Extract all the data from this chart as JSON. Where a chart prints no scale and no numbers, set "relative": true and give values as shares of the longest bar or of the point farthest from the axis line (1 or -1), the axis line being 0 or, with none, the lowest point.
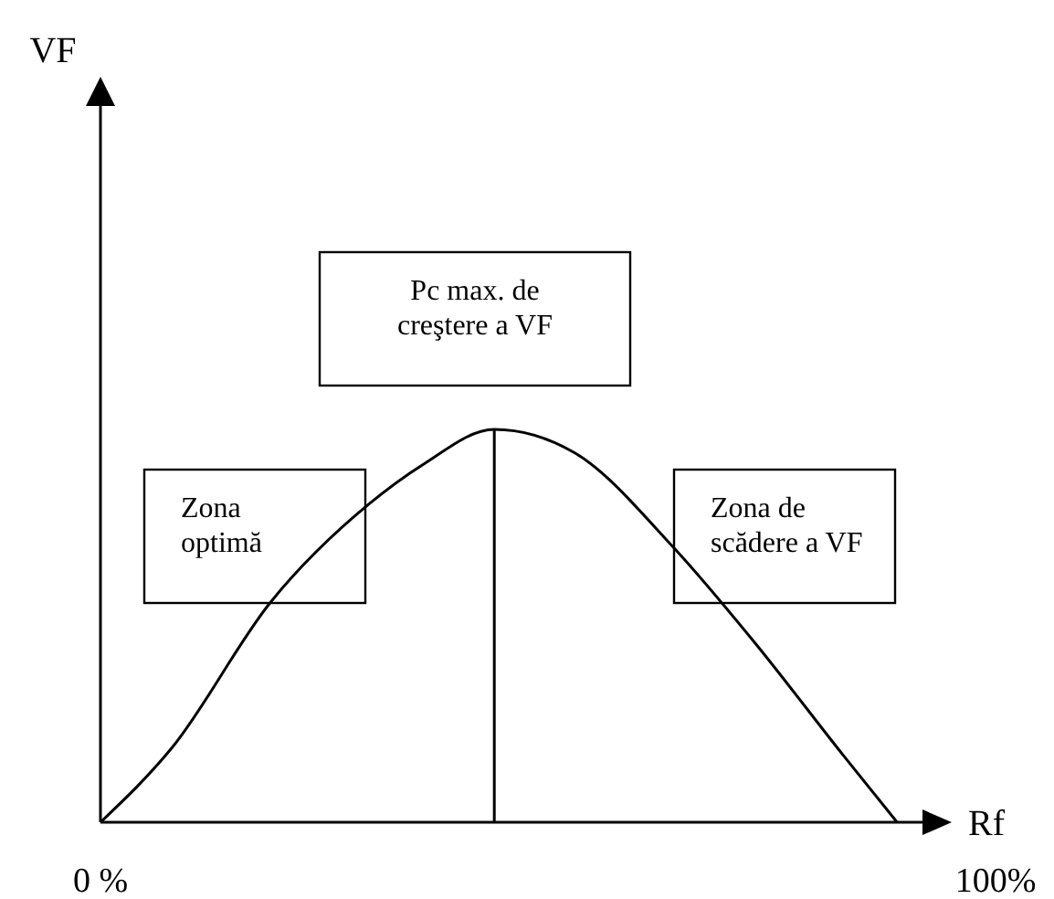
{
  "chart_data": {
    "type": "line",
    "xlabel": "Rf",
    "relative": true,
    "x": [
      0,
      8,
      19,
      30,
      36,
      44,
      53,
      64,
      73,
      83,
      89
    ],
    "values": [
      0,
      0.19,
      0.56,
      0.81,
      0.91,
      1,
      0.94,
      0.7,
      0.46,
      0.17,
      0
    ],
    "color": "#000000",
    "xlim": [
      0,
      100
    ],
    "xticks": [
      {
        "value": 0,
        "label": "0 %"
      },
      {
        "value": 100,
        "label": "100%"
      }
    ],
    "ref_lines": [
      {
        "axis": "x",
        "value": 44
      }
    ],
    "annotations": [
      "VF",
      "Pc max. de creştere a VF",
      "Zona optimă",
      "Zona de scădere a VF"
    ]
  }
}
